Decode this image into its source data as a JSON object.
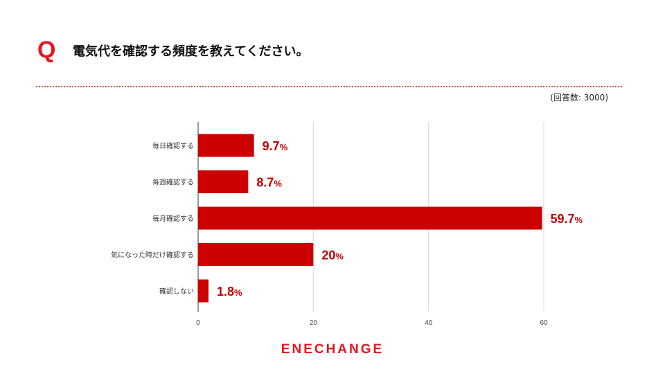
{
  "question": {
    "mark": "Q",
    "text": "電気代を確認する頻度を教えてください。"
  },
  "respondents_note": "(回答数: 3000)",
  "brand": "ENECHANGE",
  "colors": {
    "accent": "#e8141f",
    "bar": "#cc0000",
    "label": "#c00000",
    "grid": "#d9d9d9"
  },
  "chart_data": {
    "type": "bar",
    "orientation": "horizontal",
    "categories": [
      "毎日確認する",
      "毎週確認する",
      "毎月確認する",
      "気になった時だけ確認する",
      "確認しない"
    ],
    "values": [
      9.7,
      8.7,
      59.7,
      20,
      1.8
    ],
    "value_labels": [
      "9.7",
      "8.7",
      "59.7",
      "20",
      "1.8"
    ],
    "value_suffix": "%",
    "x_ticks": [
      "0",
      "20",
      "40",
      "60"
    ],
    "xlim": [
      0,
      72
    ],
    "grid": true,
    "legend": "none"
  }
}
